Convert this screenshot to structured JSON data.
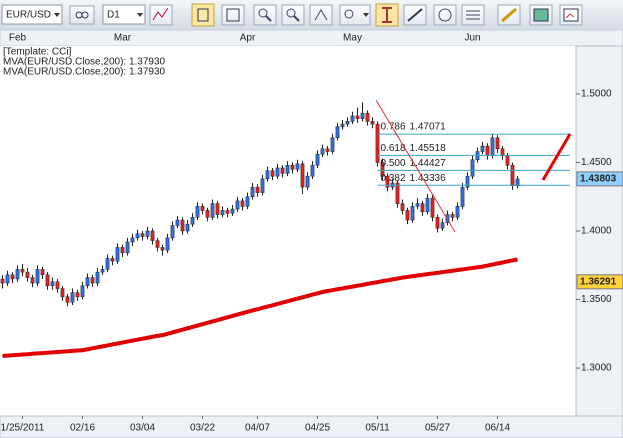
{
  "toolbar": {
    "symbol": "EUR/USD",
    "timeframe": "D1"
  },
  "chart_data": {
    "type": "candlestick",
    "legend": [
      "[Template: CCi]",
      "MVA(EUR/USD.Close,200): 1.37930",
      "MVA(EUR/USD.Close,200): 1.37930"
    ],
    "categories": [
      null,
      null,
      null,
      null,
      "1/25/2011",
      null,
      null,
      null,
      null,
      null,
      null,
      null,
      null,
      null,
      null,
      null,
      "02/16",
      null,
      null,
      null,
      null,
      null,
      null,
      null,
      null,
      null,
      null,
      null,
      "03/04",
      null,
      null,
      null,
      null,
      null,
      null,
      null,
      null,
      null,
      null,
      null,
      "03/22",
      null,
      null,
      null,
      null,
      null,
      null,
      null,
      null,
      null,
      null,
      "04/07",
      null,
      null,
      null,
      null,
      null,
      null,
      null,
      null,
      null,
      null,
      null,
      "04/25",
      null,
      null,
      null,
      null,
      null,
      null,
      null,
      null,
      null,
      null,
      null,
      "05/11",
      null,
      null,
      null,
      null,
      null,
      null,
      null,
      null,
      null,
      null,
      null,
      "05/27",
      null,
      null,
      null,
      null,
      null,
      null,
      null,
      null,
      null,
      null,
      null,
      "06/14",
      null,
      null,
      null,
      null
    ],
    "top_labels": [
      null,
      null,
      null,
      "Feb",
      null,
      null,
      null,
      null,
      null,
      null,
      null,
      null,
      null,
      null,
      null,
      null,
      null,
      null,
      null,
      null,
      null,
      null,
      null,
      null,
      "Mar",
      null,
      null,
      null,
      null,
      null,
      null,
      null,
      null,
      null,
      null,
      null,
      null,
      null,
      null,
      null,
      null,
      null,
      null,
      null,
      null,
      null,
      null,
      null,
      null,
      "Apr",
      null,
      null,
      null,
      null,
      null,
      null,
      null,
      null,
      null,
      null,
      null,
      null,
      null,
      null,
      null,
      null,
      null,
      null,
      null,
      null,
      "May",
      null,
      null,
      null,
      null,
      null,
      null,
      null,
      null,
      null,
      null,
      null,
      null,
      null,
      null,
      null,
      null,
      null,
      null,
      null,
      null,
      null,
      null,
      null,
      "Jun",
      null,
      null,
      null,
      null,
      null,
      null,
      null,
      null,
      null
    ],
    "ohlc": [
      [
        1.365,
        1.368,
        1.358,
        1.362
      ],
      [
        1.362,
        1.371,
        1.36,
        1.368
      ],
      [
        1.368,
        1.37,
        1.362,
        1.365
      ],
      [
        1.365,
        1.375,
        1.363,
        1.372
      ],
      [
        1.372,
        1.376,
        1.367,
        1.37
      ],
      [
        1.37,
        1.373,
        1.363,
        1.366
      ],
      [
        1.366,
        1.368,
        1.359,
        1.362
      ],
      [
        1.362,
        1.375,
        1.36,
        1.372
      ],
      [
        1.372,
        1.374,
        1.365,
        1.368
      ],
      [
        1.368,
        1.37,
        1.357,
        1.36
      ],
      [
        1.36,
        1.366,
        1.357,
        1.363
      ],
      [
        1.363,
        1.365,
        1.355,
        1.358
      ],
      [
        1.358,
        1.36,
        1.349,
        1.352
      ],
      [
        1.352,
        1.354,
        1.345,
        1.348
      ],
      [
        1.348,
        1.358,
        1.346,
        1.355
      ],
      [
        1.355,
        1.357,
        1.349,
        1.352
      ],
      [
        1.352,
        1.363,
        1.35,
        1.36
      ],
      [
        1.36,
        1.369,
        1.358,
        1.366
      ],
      [
        1.366,
        1.368,
        1.359,
        1.362
      ],
      [
        1.362,
        1.373,
        1.36,
        1.37
      ],
      [
        1.37,
        1.375,
        1.368,
        1.372
      ],
      [
        1.372,
        1.383,
        1.37,
        1.38
      ],
      [
        1.38,
        1.382,
        1.375,
        1.378
      ],
      [
        1.378,
        1.391,
        1.376,
        1.388
      ],
      [
        1.388,
        1.39,
        1.381,
        1.384
      ],
      [
        1.384,
        1.395,
        1.382,
        1.392
      ],
      [
        1.392,
        1.398,
        1.389,
        1.395
      ],
      [
        1.395,
        1.401,
        1.393,
        1.398
      ],
      [
        1.398,
        1.4,
        1.393,
        1.396
      ],
      [
        1.396,
        1.403,
        1.394,
        1.4
      ],
      [
        1.4,
        1.402,
        1.39,
        1.393
      ],
      [
        1.393,
        1.395,
        1.385,
        1.388
      ],
      [
        1.388,
        1.39,
        1.382,
        1.386
      ],
      [
        1.386,
        1.398,
        1.384,
        1.395
      ],
      [
        1.395,
        1.407,
        1.393,
        1.404
      ],
      [
        1.404,
        1.411,
        1.402,
        1.408
      ],
      [
        1.408,
        1.41,
        1.397,
        1.4
      ],
      [
        1.4,
        1.408,
        1.398,
        1.405
      ],
      [
        1.405,
        1.413,
        1.403,
        1.41
      ],
      [
        1.41,
        1.421,
        1.408,
        1.418
      ],
      [
        1.418,
        1.42,
        1.412,
        1.415
      ],
      [
        1.415,
        1.417,
        1.407,
        1.41
      ],
      [
        1.41,
        1.423,
        1.408,
        1.42
      ],
      [
        1.42,
        1.422,
        1.409,
        1.412
      ],
      [
        1.412,
        1.418,
        1.41,
        1.415
      ],
      [
        1.415,
        1.417,
        1.41,
        1.413
      ],
      [
        1.413,
        1.419,
        1.411,
        1.416
      ],
      [
        1.416,
        1.425,
        1.414,
        1.422
      ],
      [
        1.422,
        1.424,
        1.415,
        1.418
      ],
      [
        1.418,
        1.428,
        1.416,
        1.425
      ],
      [
        1.425,
        1.435,
        1.423,
        1.432
      ],
      [
        1.432,
        1.434,
        1.425,
        1.428
      ],
      [
        1.428,
        1.441,
        1.426,
        1.438
      ],
      [
        1.438,
        1.447,
        1.436,
        1.444
      ],
      [
        1.444,
        1.446,
        1.437,
        1.44
      ],
      [
        1.44,
        1.449,
        1.438,
        1.446
      ],
      [
        1.446,
        1.448,
        1.439,
        1.442
      ],
      [
        1.442,
        1.451,
        1.44,
        1.448
      ],
      [
        1.448,
        1.45,
        1.442,
        1.445
      ],
      [
        1.445,
        1.452,
        1.443,
        1.449
      ],
      [
        1.449,
        1.451,
        1.427,
        1.432
      ],
      [
        1.432,
        1.443,
        1.43,
        1.44
      ],
      [
        1.44,
        1.451,
        1.438,
        1.448
      ],
      [
        1.448,
        1.459,
        1.446,
        1.456
      ],
      [
        1.456,
        1.463,
        1.454,
        1.46
      ],
      [
        1.46,
        1.462,
        1.455,
        1.458
      ],
      [
        1.458,
        1.471,
        1.456,
        1.468
      ],
      [
        1.468,
        1.479,
        1.466,
        1.476
      ],
      [
        1.476,
        1.481,
        1.474,
        1.478
      ],
      [
        1.478,
        1.483,
        1.476,
        1.48
      ],
      [
        1.48,
        1.487,
        1.478,
        1.484
      ],
      [
        1.484,
        1.49,
        1.479,
        1.482
      ],
      [
        1.482,
        1.494,
        1.48,
        1.486
      ],
      [
        1.486,
        1.488,
        1.477,
        1.48
      ],
      [
        1.48,
        1.483,
        1.475,
        1.478
      ],
      [
        1.478,
        1.48,
        1.447,
        1.45
      ],
      [
        1.45,
        1.453,
        1.437,
        1.44
      ],
      [
        1.44,
        1.442,
        1.429,
        1.432
      ],
      [
        1.432,
        1.438,
        1.43,
        1.435
      ],
      [
        1.435,
        1.437,
        1.417,
        1.42
      ],
      [
        1.42,
        1.423,
        1.412,
        1.415
      ],
      [
        1.415,
        1.417,
        1.405,
        1.408
      ],
      [
        1.408,
        1.421,
        1.406,
        1.418
      ],
      [
        1.418,
        1.424,
        1.416,
        1.42
      ],
      [
        1.42,
        1.422,
        1.411,
        1.414
      ],
      [
        1.414,
        1.427,
        1.412,
        1.424
      ],
      [
        1.424,
        1.426,
        1.407,
        1.41
      ],
      [
        1.41,
        1.412,
        1.399,
        1.402
      ],
      [
        1.402,
        1.409,
        1.4,
        1.406
      ],
      [
        1.406,
        1.415,
        1.404,
        1.412
      ],
      [
        1.412,
        1.414,
        1.407,
        1.41
      ],
      [
        1.41,
        1.421,
        1.408,
        1.418
      ],
      [
        1.418,
        1.435,
        1.416,
        1.432
      ],
      [
        1.432,
        1.443,
        1.43,
        1.44
      ],
      [
        1.44,
        1.455,
        1.438,
        1.452
      ],
      [
        1.452,
        1.461,
        1.45,
        1.458
      ],
      [
        1.458,
        1.465,
        1.456,
        1.462
      ],
      [
        1.462,
        1.464,
        1.452,
        1.455
      ],
      [
        1.455,
        1.471,
        1.453,
        1.468
      ],
      [
        1.468,
        1.47,
        1.457,
        1.46
      ],
      [
        1.46,
        1.462,
        1.452,
        1.455
      ],
      [
        1.455,
        1.457,
        1.445,
        1.448
      ],
      [
        1.448,
        1.45,
        1.43,
        1.433
      ],
      [
        1.433,
        1.44,
        1.431,
        1.438
      ]
    ],
    "up_color": "#2f6fe0",
    "down_color": "#e02222",
    "ma": {
      "color": "#e00000",
      "values": [
        1.3088,
        1.3091,
        1.3093,
        1.3096,
        1.3099,
        1.3101,
        1.3104,
        1.3107,
        1.3109,
        1.3112,
        1.3114,
        1.3117,
        1.312,
        1.3122,
        1.3125,
        1.3128,
        1.313,
        1.3137,
        1.3144,
        1.3151,
        1.3158,
        1.3165,
        1.3172,
        1.3179,
        1.3186,
        1.3193,
        1.32,
        1.3207,
        1.3214,
        1.3221,
        1.3228,
        1.3235,
        1.324,
        1.325,
        1.326,
        1.327,
        1.328,
        1.329,
        1.33,
        1.331,
        1.332,
        1.333,
        1.334,
        1.335,
        1.336,
        1.337,
        1.338,
        1.339,
        1.34,
        1.341,
        1.342,
        1.3429,
        1.3439,
        1.3449,
        1.3458,
        1.3468,
        1.3478,
        1.3487,
        1.3497,
        1.3507,
        1.3516,
        1.3526,
        1.3536,
        1.3545,
        1.3555,
        1.3562,
        1.3568,
        1.3575,
        1.3581,
        1.3588,
        1.3594,
        1.3601,
        1.3607,
        1.3614,
        1.3621,
        1.3627,
        1.3634,
        1.364,
        1.3647,
        1.3653,
        1.366,
        1.3665,
        1.367,
        1.3675,
        1.368,
        1.3685,
        1.369,
        1.3695,
        1.37,
        1.3705,
        1.371,
        1.3715,
        1.372,
        1.3725,
        1.373,
        1.3735,
        1.374,
        1.3748,
        1.3755,
        1.3763,
        1.377,
        1.3778,
        1.3785,
        1.3793
      ]
    },
    "fib_levels": [
      {
        "ratio": "0.786",
        "price": 1.47071
      },
      {
        "ratio": "0.618",
        "price": 1.45518
      },
      {
        "ratio": "0.500",
        "price": 1.44427
      },
      {
        "ratio": "0.382",
        "price": 1.43336
      }
    ],
    "fib_color": "#3aa6c8",
    "price_markers": [
      {
        "value": 1.43803,
        "color": "#8fd0ff"
      },
      {
        "value": 1.36291,
        "color": "#ffd23a"
      }
    ],
    "ylim": [
      1.265,
      1.535
    ],
    "yticks": [
      {
        "value": 1.3,
        "label": "1.3000"
      },
      {
        "value": 1.35,
        "label": "1.3500"
      },
      {
        "value": 1.4,
        "label": "1.4000"
      },
      {
        "value": 1.45,
        "label": "1.4500"
      },
      {
        "value": 1.5,
        "label": "1.5000"
      }
    ]
  }
}
